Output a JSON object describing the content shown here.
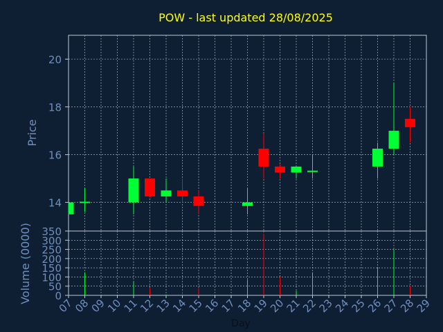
{
  "chart_data": [
    {
      "type": "candlestick",
      "title": "POW - last updated 28/08/2025",
      "ylabel": "Price",
      "xlabel": "Day",
      "ylim": [
        12.8,
        21
      ],
      "yticks": [
        14,
        16,
        18,
        20
      ],
      "x_labels": [
        "07",
        "08",
        "09",
        "10",
        "11",
        "12",
        "13",
        "14",
        "15",
        "16",
        "17",
        "18",
        "19",
        "20",
        "21",
        "22",
        "23",
        "24",
        "25",
        "26",
        "27",
        "28",
        "29"
      ],
      "candles": [
        {
          "day": "07",
          "open": 13.5,
          "high": 14.0,
          "low": 13.5,
          "close": 14.0,
          "direction": "up"
        },
        {
          "day": "08",
          "open": 14.0,
          "high": 14.6,
          "low": 13.6,
          "close": 14.0,
          "direction": "up"
        },
        {
          "day": "11",
          "open": 14.0,
          "high": 15.5,
          "low": 13.5,
          "close": 15.0,
          "direction": "up"
        },
        {
          "day": "12",
          "open": 15.0,
          "high": 15.0,
          "low": 14.2,
          "close": 14.25,
          "direction": "down"
        },
        {
          "day": "13",
          "open": 14.25,
          "high": 15.0,
          "low": 14.0,
          "close": 14.5,
          "direction": "up"
        },
        {
          "day": "14",
          "open": 14.5,
          "high": 15.0,
          "low": 14.0,
          "close": 14.25,
          "direction": "down"
        },
        {
          "day": "15",
          "open": 14.25,
          "high": 14.5,
          "low": 13.5,
          "close": 13.85,
          "direction": "down"
        },
        {
          "day": "18",
          "open": 13.85,
          "high": 14.6,
          "low": 13.5,
          "close": 14.0,
          "direction": "up"
        },
        {
          "day": "19",
          "open": 16.25,
          "high": 16.9,
          "low": 15.0,
          "close": 15.5,
          "direction": "down"
        },
        {
          "day": "20",
          "open": 15.5,
          "high": 15.6,
          "low": 15.0,
          "close": 15.25,
          "direction": "down"
        },
        {
          "day": "21",
          "open": 15.25,
          "high": 15.5,
          "low": 15.0,
          "close": 15.5,
          "direction": "up"
        },
        {
          "day": "22",
          "open": 15.3,
          "high": 16.0,
          "low": 15.0,
          "close": 15.3,
          "direction": "up"
        },
        {
          "day": "26",
          "open": 15.5,
          "high": 16.5,
          "low": 15.0,
          "close": 16.25,
          "direction": "up"
        },
        {
          "day": "27",
          "open": 16.25,
          "high": 19.0,
          "low": 16.0,
          "close": 17.0,
          "direction": "up"
        },
        {
          "day": "28",
          "open": 17.5,
          "high": 18.0,
          "low": 16.5,
          "close": 17.15,
          "direction": "down"
        }
      ],
      "colors": {
        "up": "#00ff33",
        "down": "#ff0000",
        "title": "#ffff00",
        "axis_text": "#6f8fbf"
      }
    },
    {
      "type": "bar",
      "ylabel": "Volume (0000)",
      "xlabel": "Day",
      "ylim": [
        0,
        350
      ],
      "yticks": [
        0,
        50,
        100,
        150,
        200,
        250,
        300,
        350
      ],
      "categories": [
        "07",
        "08",
        "11",
        "12",
        "13",
        "14",
        "15",
        "18",
        "19",
        "20",
        "21",
        "22",
        "26",
        "27",
        "28"
      ],
      "values": [
        2,
        125,
        75,
        40,
        5,
        20,
        40,
        85,
        335,
        100,
        25,
        125,
        155,
        250,
        50
      ],
      "directions": [
        "up",
        "up",
        "up",
        "down",
        "up",
        "down",
        "down",
        "up",
        "down",
        "down",
        "up",
        "up",
        "up",
        "up",
        "down"
      ]
    }
  ]
}
